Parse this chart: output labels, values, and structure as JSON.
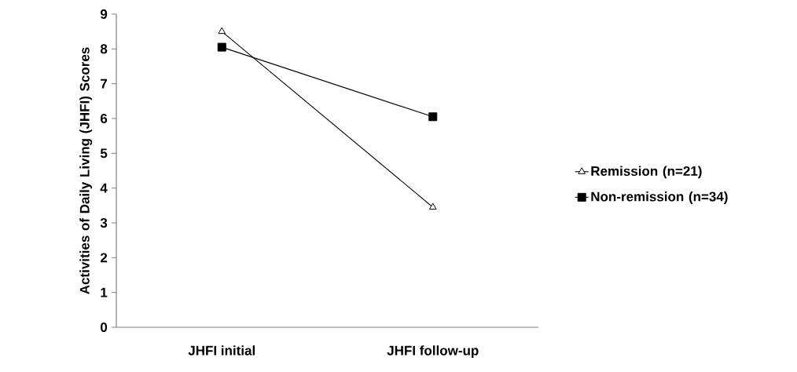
{
  "chart_data": {
    "type": "line",
    "ylabel": "Activities of Daily Living (JHFI) Scores",
    "categories": [
      "JHFI initial",
      "JHFI follow-up"
    ],
    "series": [
      {
        "name": "Remission (n=21)",
        "color": "#000000",
        "marker": "triangle",
        "values": [
          8.5,
          3.45
        ]
      },
      {
        "name": "Non-remission (n=34)",
        "color": "#000000",
        "marker": "square",
        "values": [
          8.05,
          6.05
        ]
      }
    ],
    "ylim": [
      0,
      9
    ],
    "yticks": [
      0,
      1,
      2,
      3,
      4,
      5,
      6,
      7,
      8,
      9
    ],
    "legend": "right",
    "grid": false
  }
}
